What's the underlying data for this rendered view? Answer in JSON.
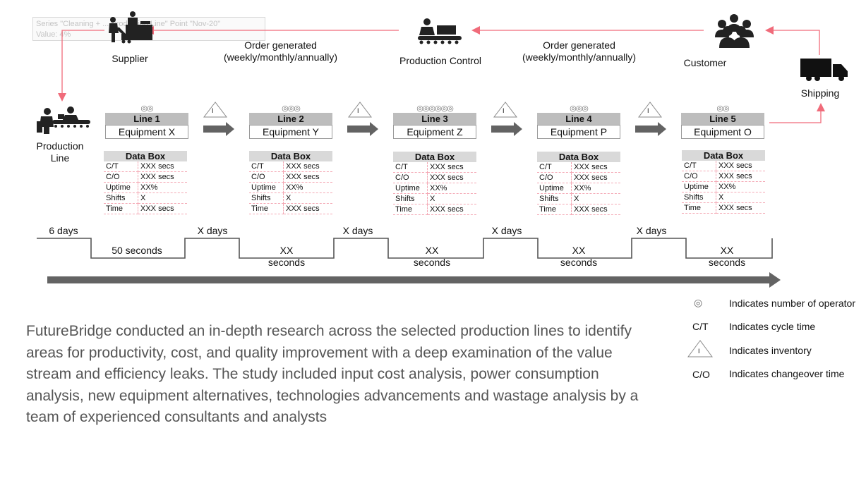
{
  "tooltip": {
    "line1": "Series \"Cleaning + ... Production Line\" Point \"Nov-20\"",
    "line2": "Value: 4%"
  },
  "nodes": {
    "supplier": "Supplier",
    "production_control": "Production Control",
    "customer": "Customer",
    "shipping": "Shipping",
    "production_line": "Production Line"
  },
  "orders": [
    {
      "line1": "Order generated",
      "line2": "(weekly/monthly/annually)"
    },
    {
      "line1": "Order generated",
      "line2": "(weekly/monthly/annually)"
    }
  ],
  "inventory_mark": "I",
  "lines": [
    {
      "title": "Line 1",
      "equipment": "Equipment X",
      "operators": 2
    },
    {
      "title": "Line 2",
      "equipment": "Equipment Y",
      "operators": 3
    },
    {
      "title": "Line 3",
      "equipment": "Equipment Z",
      "operators": 6
    },
    {
      "title": "Line 4",
      "equipment": "Equipment P",
      "operators": 3
    },
    {
      "title": "Line 5",
      "equipment": "Equipment O",
      "operators": 2
    }
  ],
  "databox": {
    "title": "Data Box",
    "rows": [
      [
        "C/T",
        "XXX secs"
      ],
      [
        "C/O",
        "XXX secs"
      ],
      [
        "Uptime",
        "XX%"
      ],
      [
        "Shifts",
        "X"
      ],
      [
        "Time",
        "XXX secs"
      ]
    ]
  },
  "timeline": {
    "days": [
      "6 days",
      "X days",
      "X days",
      "X days",
      "X days"
    ],
    "seconds": [
      {
        "line1": "50 seconds",
        "line2": ""
      },
      {
        "line1": "XX",
        "line2": "seconds"
      },
      {
        "line1": "XX",
        "line2": "seconds"
      },
      {
        "line1": "XX",
        "line2": "seconds"
      },
      {
        "line1": "XX",
        "line2": "seconds"
      }
    ]
  },
  "legend": [
    {
      "symbol": "operator-icon",
      "text": "Indicates number of operator"
    },
    {
      "symbol": "C/T",
      "text": "Indicates cycle time"
    },
    {
      "symbol": "inventory-icon",
      "text": "Indicates inventory"
    },
    {
      "symbol": "C/O",
      "text": "Indicates changeover time"
    }
  ],
  "paragraph": "FutureBridge conducted an in-depth research across the selected production lines to identify areas for productivity, cost, and quality improvement with a deep examination of the value stream and efficiency leaks. The study included input cost analysis, power consumption analysis, new equipment alternatives, technologies advancements and wastage analysis by a team of experienced consultants and analysts",
  "colors": {
    "flow_arrow": "#f06b7a",
    "push_arrow": "#636363",
    "line_header": "#bdbdbd",
    "timeline": "#555555"
  }
}
